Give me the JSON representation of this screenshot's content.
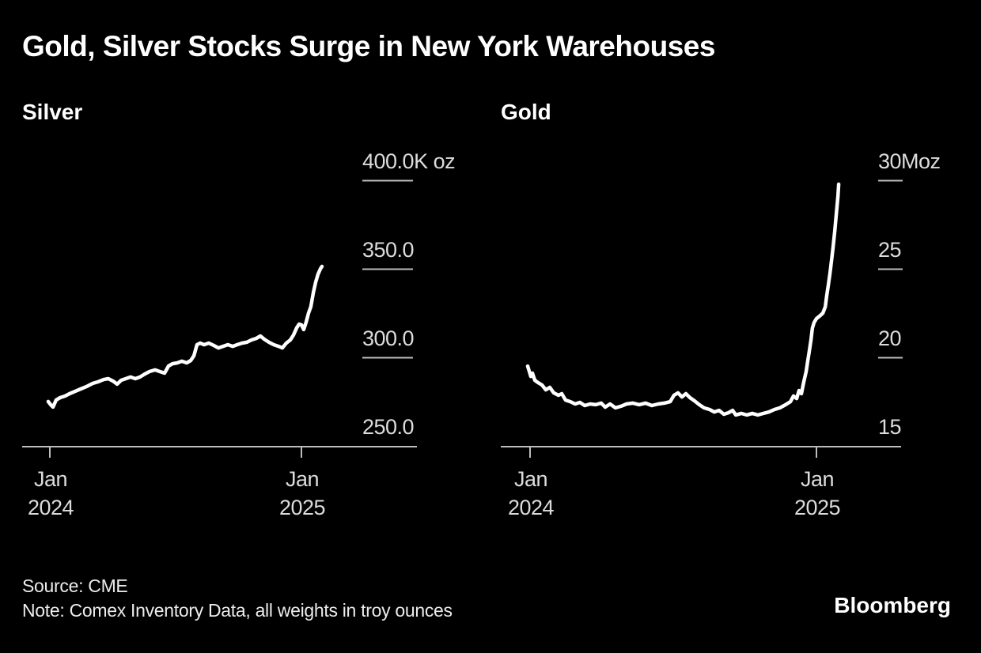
{
  "title": "Gold, Silver Stocks Surge in New York Warehouses",
  "footer": {
    "source": "Source: CME",
    "note": "Note: Comex Inventory Data, all weights in troy ounces",
    "logo": "Bloomberg"
  },
  "colors": {
    "background": "#000000",
    "line": "#ffffff",
    "axis": "#bdbdbd",
    "tick_label": "#dcdcdc",
    "text": "#ffffff"
  },
  "chart_data": [
    {
      "id": "silver",
      "type": "line",
      "title": "Silver",
      "unit": "K oz (thousand troy ounces)",
      "ylim": [
        250,
        400
      ],
      "xlim_months_from_jan2024": [
        -0.2,
        13.2
      ],
      "grid": false,
      "legend": "none",
      "y_ticks": [
        {
          "value": 400,
          "label": "400.0K oz"
        },
        {
          "value": 350,
          "label": "350.0"
        },
        {
          "value": 300,
          "label": "300.0"
        },
        {
          "value": 250,
          "label": "250.0"
        }
      ],
      "x_ticks": [
        {
          "t": 0,
          "line1": "Jan",
          "line2": "2024"
        },
        {
          "t": 12,
          "line1": "Jan",
          "line2": "2025"
        }
      ],
      "series": [
        {
          "name": "Comex silver warehouse stocks (K oz)",
          "x_unit": "months since Jan 1 2024",
          "points": [
            [
              -0.08,
              275.4
            ],
            [
              0.04,
              273.6
            ],
            [
              0.15,
              272.3
            ],
            [
              0.3,
              276.3
            ],
            [
              0.49,
              277.6
            ],
            [
              0.72,
              278.5
            ],
            [
              0.94,
              279.8
            ],
            [
              1.21,
              281.2
            ],
            [
              1.47,
              282.5
            ],
            [
              1.74,
              283.8
            ],
            [
              2.04,
              285.6
            ],
            [
              2.3,
              286.5
            ],
            [
              2.57,
              287.8
            ],
            [
              2.79,
              288.3
            ],
            [
              3.02,
              286.9
            ],
            [
              3.21,
              285.2
            ],
            [
              3.4,
              287.4
            ],
            [
              3.62,
              288.3
            ],
            [
              3.85,
              289.2
            ],
            [
              4.08,
              288.3
            ],
            [
              4.3,
              289.2
            ],
            [
              4.53,
              290.9
            ],
            [
              4.75,
              292.3
            ],
            [
              5.02,
              293.2
            ],
            [
              5.25,
              292.3
            ],
            [
              5.47,
              291.4
            ],
            [
              5.66,
              295.4
            ],
            [
              5.85,
              296.7
            ],
            [
              6.08,
              297.2
            ],
            [
              6.3,
              298.1
            ],
            [
              6.53,
              297.2
            ],
            [
              6.72,
              298.5
            ],
            [
              6.87,
              301.2
            ],
            [
              7.02,
              307.4
            ],
            [
              7.17,
              308.3
            ],
            [
              7.36,
              307.4
            ],
            [
              7.58,
              308.3
            ],
            [
              7.81,
              307.0
            ],
            [
              8.04,
              305.6
            ],
            [
              8.26,
              306.5
            ],
            [
              8.49,
              307.4
            ],
            [
              8.72,
              306.5
            ],
            [
              8.94,
              307.4
            ],
            [
              9.17,
              308.3
            ],
            [
              9.4,
              308.8
            ],
            [
              9.62,
              310.1
            ],
            [
              9.85,
              311.0
            ],
            [
              10.04,
              312.3
            ],
            [
              10.23,
              310.5
            ],
            [
              10.45,
              308.8
            ],
            [
              10.68,
              307.4
            ],
            [
              10.91,
              306.5
            ],
            [
              11.09,
              305.6
            ],
            [
              11.28,
              308.3
            ],
            [
              11.47,
              310.1
            ],
            [
              11.62,
              312.8
            ],
            [
              11.77,
              316.8
            ],
            [
              11.89,
              319.0
            ],
            [
              12.0,
              318.6
            ],
            [
              12.11,
              315.9
            ],
            [
              12.23,
              320.3
            ],
            [
              12.34,
              325.2
            ],
            [
              12.45,
              328.8
            ],
            [
              12.57,
              336.8
            ],
            [
              12.68,
              342.6
            ],
            [
              12.79,
              347.0
            ],
            [
              12.91,
              350.2
            ],
            [
              12.98,
              351.5
            ]
          ]
        }
      ]
    },
    {
      "id": "gold",
      "type": "line",
      "title": "Gold",
      "unit": "Moz (million troy ounces)",
      "ylim": [
        15,
        30
      ],
      "xlim_months_from_jan2024": [
        -0.2,
        13.1
      ],
      "grid": false,
      "legend": "none",
      "y_ticks": [
        {
          "value": 30,
          "label": "30Moz"
        },
        {
          "value": 25,
          "label": "25"
        },
        {
          "value": 20,
          "label": "20"
        },
        {
          "value": 15,
          "label": "15"
        }
      ],
      "x_ticks": [
        {
          "t": 0,
          "line1": "Jan",
          "line2": "2024"
        },
        {
          "t": 12,
          "line1": "Jan",
          "line2": "2025"
        }
      ],
      "series": [
        {
          "name": "Comex gold warehouse stocks (Moz)",
          "x_unit": "months since Jan 1 2024",
          "points": [
            [
              -0.1,
              19.55
            ],
            [
              -0.03,
              19.24
            ],
            [
              0.03,
              18.97
            ],
            [
              0.1,
              19.15
            ],
            [
              0.2,
              18.75
            ],
            [
              0.33,
              18.62
            ],
            [
              0.5,
              18.48
            ],
            [
              0.66,
              18.21
            ],
            [
              0.83,
              18.35
            ],
            [
              0.99,
              18.04
            ],
            [
              1.19,
              17.9
            ],
            [
              1.33,
              17.99
            ],
            [
              1.49,
              17.63
            ],
            [
              1.69,
              17.54
            ],
            [
              1.89,
              17.41
            ],
            [
              2.09,
              17.5
            ],
            [
              2.29,
              17.32
            ],
            [
              2.52,
              17.41
            ],
            [
              2.75,
              17.37
            ],
            [
              2.98,
              17.46
            ],
            [
              3.15,
              17.23
            ],
            [
              3.35,
              17.41
            ],
            [
              3.58,
              17.19
            ],
            [
              3.81,
              17.28
            ],
            [
              4.04,
              17.41
            ],
            [
              4.31,
              17.46
            ],
            [
              4.57,
              17.37
            ],
            [
              4.84,
              17.46
            ],
            [
              5.1,
              17.32
            ],
            [
              5.37,
              17.41
            ],
            [
              5.63,
              17.46
            ],
            [
              5.87,
              17.54
            ],
            [
              6.03,
              17.9
            ],
            [
              6.2,
              18.04
            ],
            [
              6.36,
              17.81
            ],
            [
              6.53,
              17.99
            ],
            [
              6.7,
              17.77
            ],
            [
              6.89,
              17.59
            ],
            [
              7.09,
              17.37
            ],
            [
              7.29,
              17.19
            ],
            [
              7.52,
              17.1
            ],
            [
              7.72,
              16.96
            ],
            [
              7.92,
              17.05
            ],
            [
              8.12,
              16.83
            ],
            [
              8.32,
              16.92
            ],
            [
              8.49,
              17.05
            ],
            [
              8.62,
              16.79
            ],
            [
              8.85,
              16.88
            ],
            [
              9.08,
              16.79
            ],
            [
              9.31,
              16.88
            ],
            [
              9.55,
              16.79
            ],
            [
              9.78,
              16.88
            ],
            [
              10.01,
              16.96
            ],
            [
              10.24,
              17.1
            ],
            [
              10.47,
              17.19
            ],
            [
              10.71,
              17.37
            ],
            [
              10.91,
              17.54
            ],
            [
              11.04,
              17.86
            ],
            [
              11.17,
              17.72
            ],
            [
              11.27,
              18.17
            ],
            [
              11.37,
              17.99
            ],
            [
              11.47,
              18.66
            ],
            [
              11.57,
              19.24
            ],
            [
              11.63,
              19.78
            ],
            [
              11.7,
              20.4
            ],
            [
              11.77,
              21.03
            ],
            [
              11.83,
              21.7
            ],
            [
              11.9,
              22.01
            ],
            [
              12.0,
              22.23
            ],
            [
              12.13,
              22.37
            ],
            [
              12.27,
              22.54
            ],
            [
              12.37,
              22.9
            ],
            [
              12.43,
              23.53
            ],
            [
              12.5,
              24.15
            ],
            [
              12.57,
              24.82
            ],
            [
              12.63,
              25.49
            ],
            [
              12.7,
              26.29
            ],
            [
              12.77,
              27.19
            ],
            [
              12.83,
              28.08
            ],
            [
              12.9,
              29.15
            ],
            [
              12.93,
              29.82
            ]
          ]
        }
      ]
    }
  ]
}
